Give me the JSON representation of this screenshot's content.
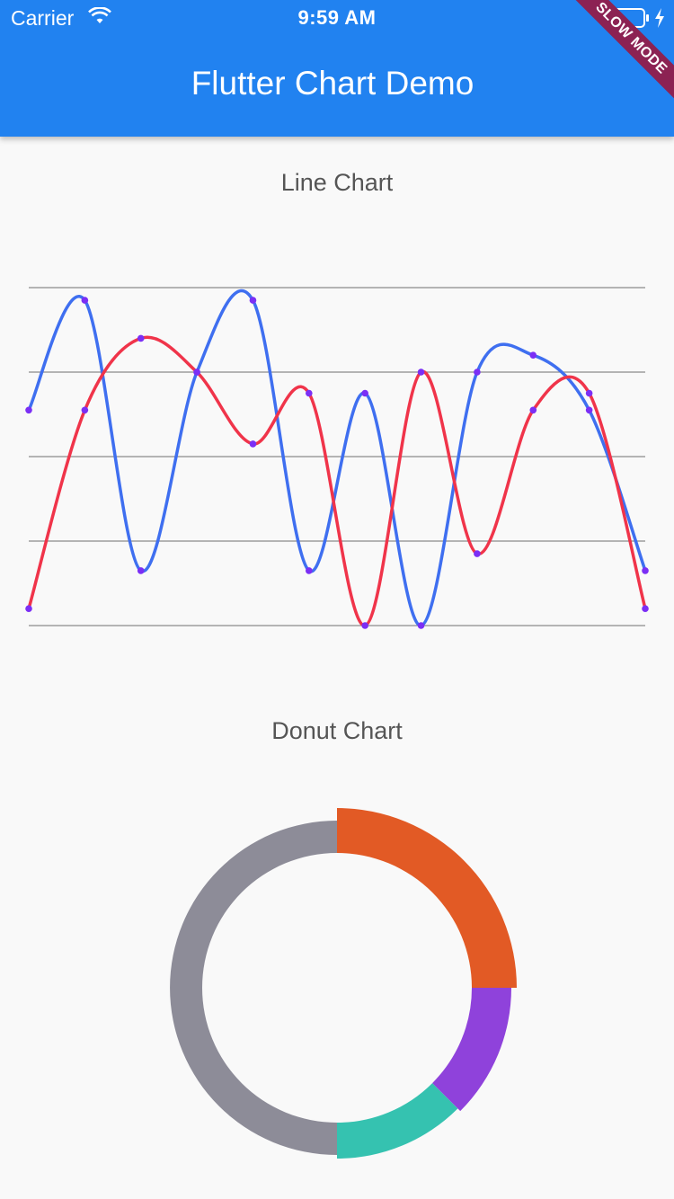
{
  "status_bar": {
    "carrier": "Carrier",
    "time": "9:59 AM",
    "icons": [
      "wifi-icon",
      "battery-icon",
      "charging-bolt-icon"
    ]
  },
  "app_bar": {
    "title": "Flutter Chart Demo",
    "color": "#2182f0",
    "debug_banner": "SLOW MODE"
  },
  "chart_data": [
    {
      "type": "line",
      "title": "Line Chart",
      "x": [
        0,
        1,
        2,
        3,
        4,
        5,
        6,
        7,
        8,
        9,
        10,
        11
      ],
      "ylim": [
        0,
        4
      ],
      "grid": true,
      "series": [
        {
          "color": "#3f6ff0",
          "values": [
            2.55,
            3.85,
            0.65,
            3.0,
            3.85,
            0.65,
            2.75,
            0.0,
            3.0,
            3.2,
            2.55,
            0.65
          ]
        },
        {
          "color": "#f0344a",
          "values": [
            0.2,
            2.55,
            3.4,
            3.0,
            2.15,
            2.75,
            0.0,
            3.0,
            0.85,
            2.55,
            2.75,
            0.2
          ]
        }
      ],
      "marker_color": "#7b2ff5"
    },
    {
      "type": "pie",
      "title": "Donut Chart",
      "slices": [
        {
          "value": 25,
          "color": "#e25a25"
        },
        {
          "value": 12.5,
          "color": "#8f42db"
        },
        {
          "value": 12.5,
          "color": "#35c2b0"
        },
        {
          "value": 50,
          "color": "#8d8c98"
        }
      ]
    }
  ]
}
